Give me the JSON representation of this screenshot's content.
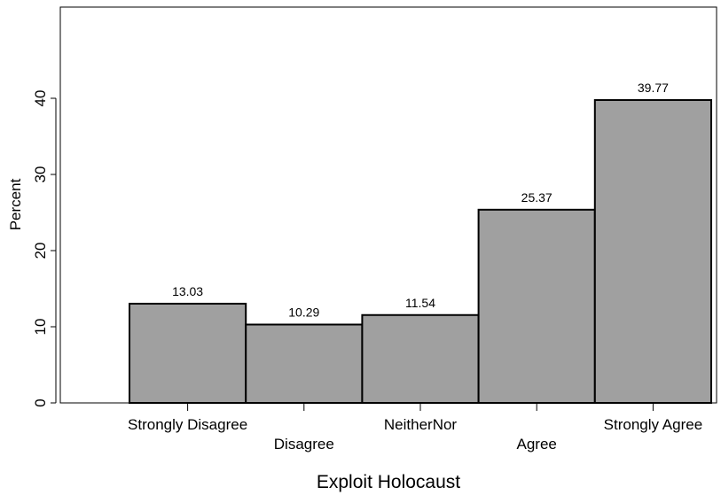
{
  "chart_data": {
    "type": "bar",
    "title": "",
    "xlabel": "Exploit Holocaust",
    "ylabel": "Percent",
    "categories": [
      "Strongly Disagree",
      "Disagree",
      "NeitherNor",
      "Agree",
      "Strongly Agree"
    ],
    "values": [
      13.03,
      10.29,
      11.54,
      25.37,
      39.77
    ],
    "value_labels": [
      "13.03",
      "10.29",
      "11.54",
      "25.37",
      "39.77"
    ],
    "yticks": [
      "0",
      "10",
      "20",
      "30",
      "40"
    ],
    "ylim": [
      0,
      52
    ],
    "grid": false,
    "bar_color": "#a0a0a0",
    "bar_edge_color": "#000000"
  }
}
